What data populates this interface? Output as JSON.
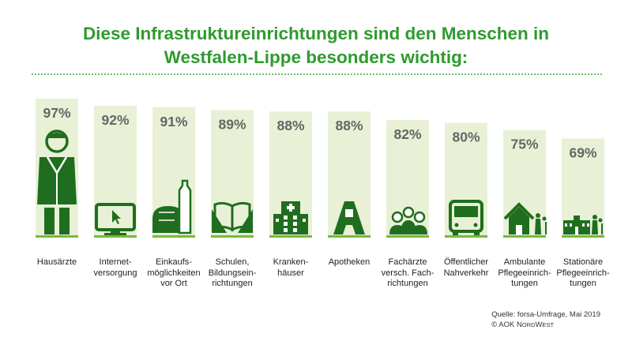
{
  "title": {
    "line1": "Diese Infrastruktureinrichtungen sind den Menschen in",
    "line2": "Westfalen-Lippe besonders wichtig:"
  },
  "colors": {
    "title": "#2f9a2f",
    "bar": "#e8f1d6",
    "baseline": "#7ab83c",
    "icon": "#1f6e1f",
    "value": "#666666"
  },
  "chart_data": {
    "type": "bar",
    "title": "Diese Infrastruktureinrichtungen sind den Menschen in Westfalen-Lippe besonders wichtig:",
    "unit": "%",
    "ylim": [
      0,
      100
    ],
    "grid": false,
    "categories": [
      "Hausärzte",
      "Internet-\nversorgung",
      "Einkaufs-\nmöglichkeiten\nvor Ort",
      "Schulen,\nBildungsein-\nrichtungen",
      "Kranken-\nhäuser",
      "Apotheken",
      "Fachärzte\nversch. Fach-\nrichtungen",
      "Öffentlicher\nNahverkehr",
      "Ambulante\nPflegeeinrich-\ntungen",
      "Stationäre\nPflegeeinrich-\ntungen"
    ],
    "values": [
      97,
      92,
      91,
      89,
      88,
      88,
      82,
      80,
      75,
      69
    ],
    "value_labels": [
      "97%",
      "92%",
      "91%",
      "89%",
      "88%",
      "88%",
      "82%",
      "80%",
      "75%",
      "69%"
    ],
    "icons": [
      "doctor-icon",
      "monitor-cursor-icon",
      "groceries-icon",
      "open-book-icon",
      "hospital-icon",
      "pharmacy-icon",
      "specialists-icon",
      "bus-icon",
      "home-care-icon",
      "care-home-icon"
    ]
  },
  "source": {
    "line1": "Quelle: forsa-Umfrage, Mai 2019",
    "line2_prefix": "© AOK ",
    "line2_brand_n": "N",
    "line2_brand_ord": "ORD",
    "line2_brand_w": "W",
    "line2_brand_est": "EST"
  }
}
